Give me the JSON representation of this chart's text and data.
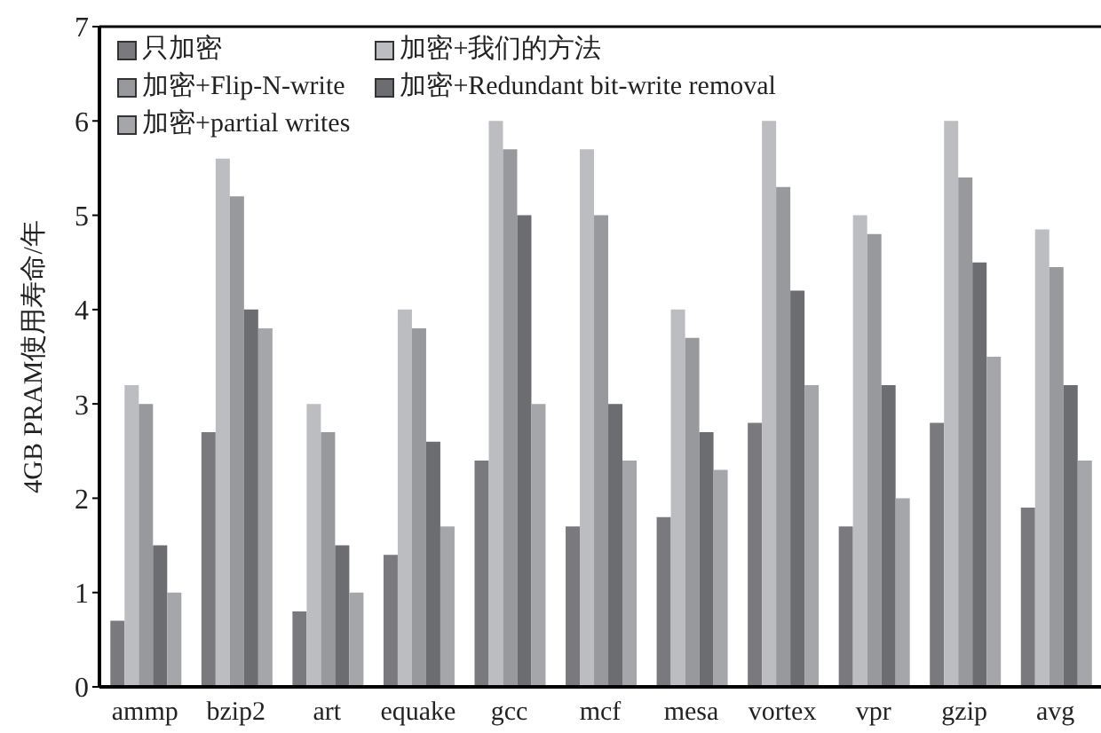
{
  "chart_data": {
    "type": "bar",
    "ylabel": "4GB PRAM使用寿命/年",
    "categories": [
      "ammp",
      "bzip2",
      "art",
      "equake",
      "gcc",
      "mcf",
      "mesa",
      "vortex",
      "vpr",
      "gzip",
      "avg"
    ],
    "series": [
      {
        "name": "只加密",
        "color": "#7a7a7e",
        "values": [
          0.7,
          2.7,
          0.8,
          1.4,
          2.4,
          1.7,
          1.8,
          2.8,
          1.7,
          2.8,
          1.9
        ]
      },
      {
        "name": "加密+我们的方法",
        "color": "#bcbdc1",
        "values": [
          3.2,
          5.6,
          3.0,
          4.0,
          6.0,
          5.7,
          4.0,
          6.0,
          5.0,
          6.0,
          4.85
        ]
      },
      {
        "name": "加密+Flip-N-write",
        "color": "#98999d",
        "values": [
          3.0,
          5.2,
          2.7,
          3.8,
          5.7,
          5.0,
          3.7,
          5.3,
          4.8,
          5.4,
          4.45
        ]
      },
      {
        "name": "加密+Redundant bit-write removal",
        "color": "#6c6d71",
        "values": [
          1.5,
          4.0,
          1.5,
          2.6,
          5.0,
          3.0,
          2.7,
          4.2,
          3.2,
          4.5,
          3.2
        ]
      },
      {
        "name": "加密+partial writes",
        "color": "#a5a6aa",
        "values": [
          1.0,
          3.8,
          1.0,
          1.7,
          3.0,
          2.4,
          2.3,
          3.2,
          2.0,
          3.5,
          2.4
        ]
      }
    ],
    "ylim": [
      0,
      7
    ],
    "yticks": [
      0,
      1,
      2,
      3,
      4,
      5,
      6,
      7
    ],
    "grid": false,
    "legend": "top left"
  }
}
